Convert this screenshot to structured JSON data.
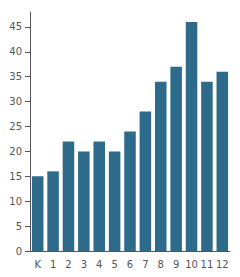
{
  "chart_data": {
    "type": "bar",
    "categories": [
      "K",
      "1",
      "2",
      "3",
      "4",
      "5",
      "6",
      "7",
      "8",
      "9",
      "10",
      "11",
      "12"
    ],
    "values": [
      15,
      16,
      22,
      20,
      22,
      20,
      24,
      28,
      34,
      37,
      46,
      34,
      36
    ],
    "color": "#2e6b8a",
    "ylim": [
      0,
      48
    ],
    "yticks": [
      0,
      5,
      10,
      15,
      20,
      25,
      30,
      35,
      40,
      45
    ],
    "grid": false
  }
}
